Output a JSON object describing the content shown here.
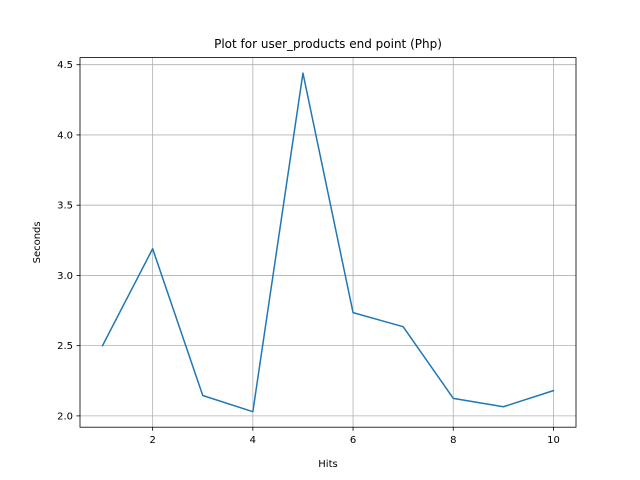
{
  "chart_data": {
    "type": "line",
    "title": "Plot for user_products end point (Php)",
    "xlabel": "Hits",
    "ylabel": "Seconds",
    "x": [
      1,
      2,
      3,
      4,
      5,
      6,
      7,
      8,
      9,
      10
    ],
    "series": [
      {
        "values": [
          2.5,
          3.19,
          2.145,
          2.03,
          4.44,
          2.735,
          2.635,
          2.125,
          2.065,
          2.18
        ]
      }
    ],
    "xticks": [
      2,
      4,
      6,
      8,
      10
    ],
    "xtick_labels": [
      "2",
      "4",
      "6",
      "8",
      "10"
    ],
    "yticks": [
      2.0,
      2.5,
      3.0,
      3.5,
      4.0,
      4.5
    ],
    "ytick_labels": [
      "2.0",
      "2.5",
      "3.0",
      "3.5",
      "4.0",
      "4.5"
    ],
    "xlim": [
      0.55,
      10.45
    ],
    "ylim": [
      1.9195,
      4.5505
    ],
    "grid": true,
    "line_color": "#1f77b4"
  }
}
